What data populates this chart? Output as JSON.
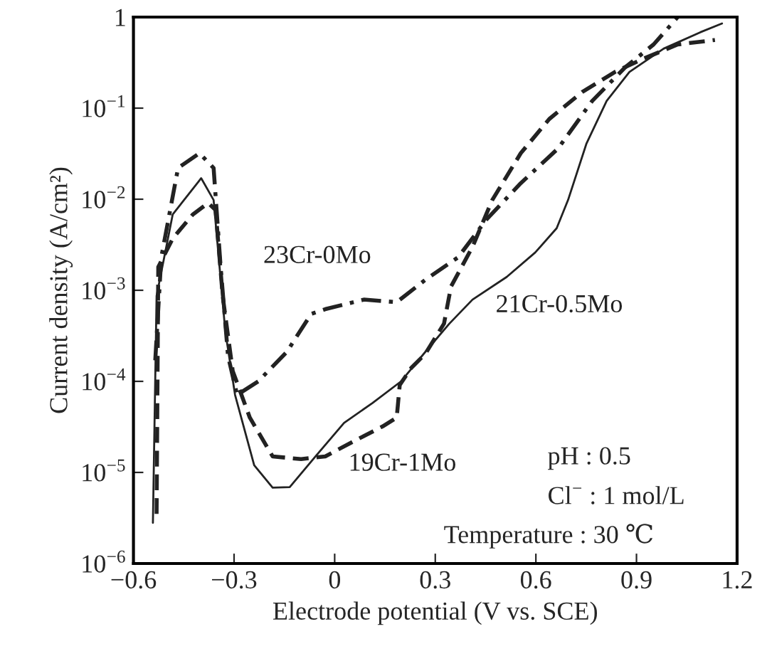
{
  "chart_data": {
    "type": "line",
    "xlabel": "Electrode potential (V vs. SCE)",
    "ylabel": "Current density (A/cm²)",
    "log": "y",
    "xlim": [
      -0.6,
      1.2
    ],
    "ylim": [
      1e-06,
      1
    ],
    "xticks": [
      {
        "value": -0.6,
        "label": "−0.6"
      },
      {
        "value": -0.3,
        "label": "−0.3"
      },
      0,
      0.3,
      0.6,
      0.9,
      1.2
    ],
    "yticks": [
      {
        "value": 1e-06,
        "label": "10$^{−6}$"
      },
      {
        "value": 1e-05,
        "label": "10$^{−5}$"
      },
      {
        "value": 0.0001,
        "label": "10$^{−4}$"
      },
      {
        "value": 0.001,
        "label": "10$^{−3}$"
      },
      {
        "value": 0.01,
        "label": "10$^{−2}$"
      },
      {
        "value": 0.1,
        "label": "10$^{−1}$"
      },
      1
    ],
    "grid": false,
    "legend": false,
    "series": [
      {
        "name": "23Cr-0Mo",
        "color": "#222222",
        "line_style": "dashdot",
        "x": [
          -0.535,
          -0.517,
          -0.467,
          -0.403,
          -0.361,
          -0.34,
          -0.318,
          -0.291,
          -0.228,
          -0.143,
          -0.07,
          -0.028,
          0.087,
          0.185,
          0.27,
          0.368,
          0.453,
          0.555,
          0.666,
          0.768,
          0.866,
          0.951,
          1.023
        ],
        "values": [
          0.00017,
          0.0023,
          0.022,
          0.032,
          0.022,
          0.0018,
          0.00019,
          7.1e-05,
          0.0001,
          0.00021,
          0.00055,
          0.00062,
          0.00079,
          0.00074,
          0.0013,
          0.0023,
          0.006,
          0.015,
          0.036,
          0.12,
          0.28,
          0.5,
          1.0
        ]
      },
      {
        "name": "21Cr-0.5Mo",
        "color": "#222222",
        "line_style": "solid",
        "x": [
          -0.542,
          -0.531,
          -0.483,
          -0.398,
          -0.361,
          -0.326,
          -0.297,
          -0.24,
          -0.185,
          -0.134,
          -0.057,
          0.028,
          0.113,
          0.198,
          0.27,
          0.342,
          0.411,
          0.513,
          0.598,
          0.662,
          0.696,
          0.751,
          0.811,
          0.879,
          0.981,
          1.09,
          1.155
        ],
        "values": [
          2.8e-06,
          0.00087,
          0.0068,
          0.017,
          0.0098,
          0.00035,
          7.1e-05,
          1.2e-05,
          6.8e-06,
          6.9e-06,
          1.5e-05,
          3.5e-05,
          5.8e-05,
          0.0001,
          0.00021,
          0.00043,
          0.00079,
          0.0014,
          0.0026,
          0.0048,
          0.0098,
          0.041,
          0.12,
          0.25,
          0.45,
          0.68,
          0.85
        ]
      },
      {
        "name": "19Cr-1Mo",
        "color": "#222222",
        "line_style": "dashed",
        "x": [
          -0.531,
          -0.526,
          -0.483,
          -0.423,
          -0.377,
          -0.355,
          -0.334,
          -0.304,
          -0.253,
          -0.185,
          -0.1,
          -0.028,
          0.057,
          0.143,
          0.185,
          0.194,
          0.228,
          0.27,
          0.326,
          0.347,
          0.411,
          0.47,
          0.555,
          0.64,
          0.738,
          0.836,
          0.921,
          1.023,
          1.134
        ],
        "values": [
          3.5e-06,
          0.0018,
          0.0037,
          0.0068,
          0.0091,
          0.0076,
          0.00087,
          0.00013,
          4e-05,
          1.5e-05,
          1.4e-05,
          1.5e-05,
          2.2e-05,
          3.2e-05,
          4e-05,
          9.1e-05,
          0.00014,
          0.0002,
          0.00043,
          0.0011,
          0.003,
          0.0098,
          0.032,
          0.076,
          0.15,
          0.25,
          0.35,
          0.5,
          0.56
        ]
      }
    ],
    "annotations": [
      "pH : 0.5",
      "Cl$^{−}$ : 1 mol/L",
      "Temperature : 30 ℃"
    ]
  }
}
